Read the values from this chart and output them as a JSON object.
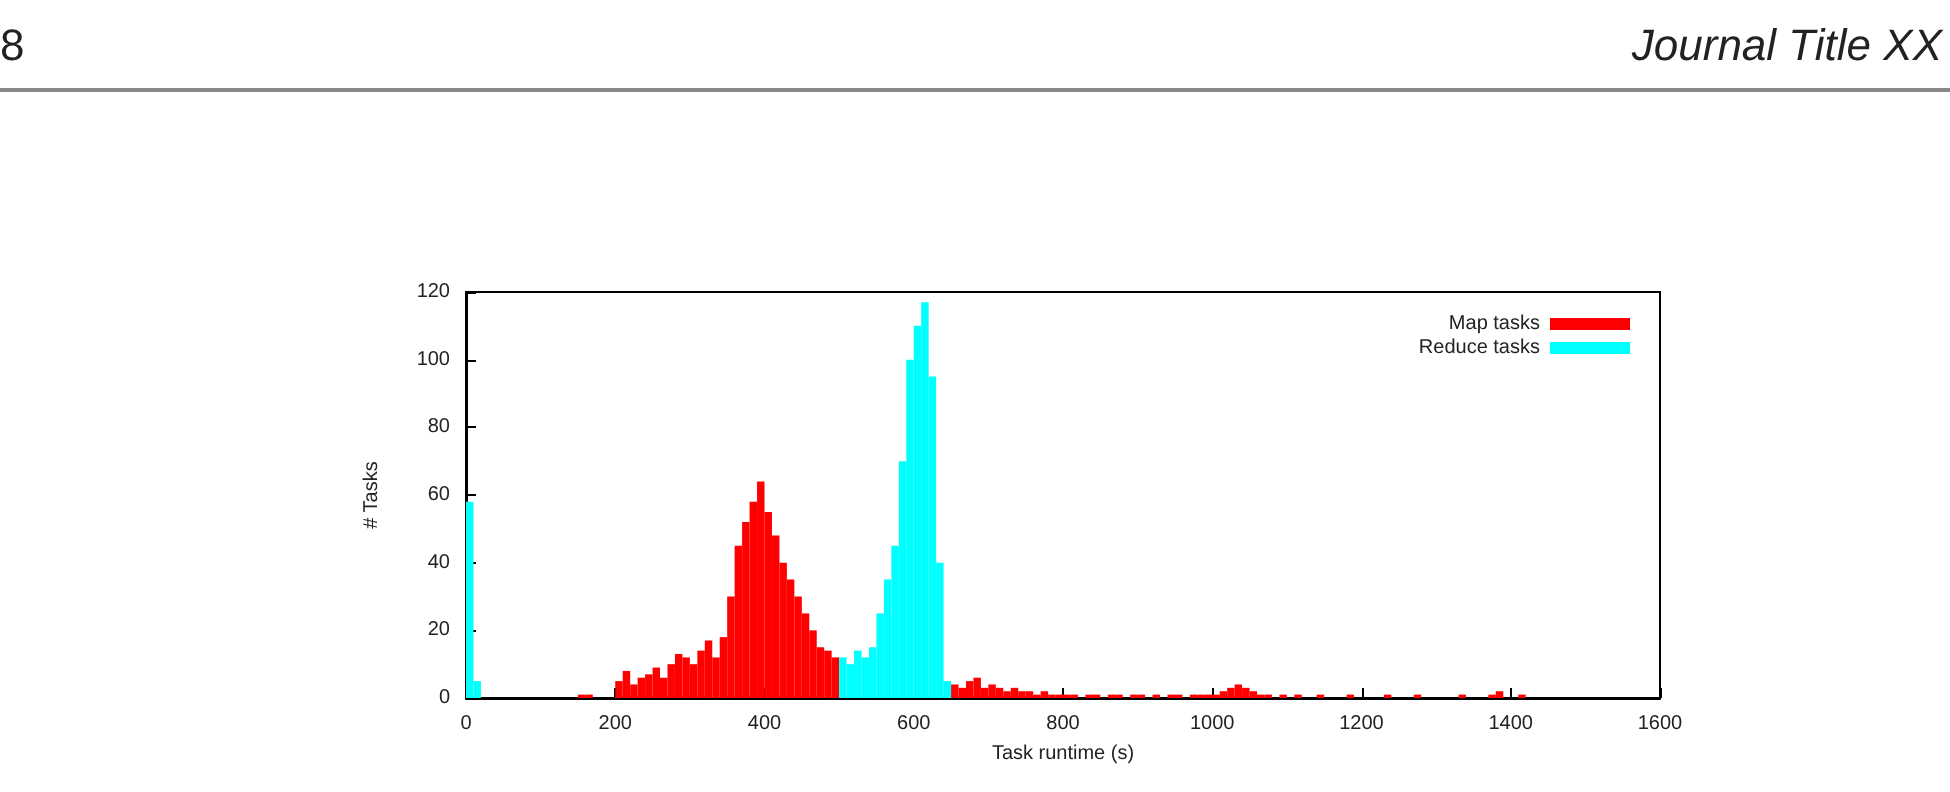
{
  "chart_data": {
    "type": "histogram",
    "xlabel": "Task runtime (s)",
    "ylabel": "# Tasks",
    "annotations": [
      "8",
      "Journal Title XX"
    ],
    "bins": [
      0,
      10,
      20,
      30,
      40,
      50,
      60,
      70,
      80,
      90,
      100,
      110,
      120,
      130,
      140,
      150,
      160,
      170,
      180,
      190,
      200,
      210,
      220,
      230,
      240,
      250,
      260,
      270,
      280,
      290,
      300,
      310,
      320,
      330,
      340,
      350,
      360,
      370,
      380,
      390,
      400,
      410,
      420,
      430,
      440,
      450,
      460,
      470,
      480,
      490,
      500,
      510,
      520,
      530,
      540,
      550,
      560,
      570,
      580,
      590,
      600,
      610,
      620,
      630,
      640,
      650,
      660,
      670,
      680,
      690,
      700,
      710,
      720,
      730,
      740,
      750,
      760,
      770,
      780,
      790,
      800,
      810,
      820,
      830,
      840,
      850,
      860,
      870,
      880,
      890,
      900,
      910,
      920,
      930,
      940,
      950,
      960,
      970,
      980,
      990,
      1000,
      1010,
      1020,
      1030,
      1040,
      1050,
      1060,
      1070,
      1080,
      1090,
      1100,
      1110,
      1120,
      1130,
      1140,
      1150,
      1160,
      1170,
      1180,
      1190,
      1200,
      1210,
      1220,
      1230,
      1240,
      1250,
      1260,
      1270,
      1280,
      1290,
      1300,
      1310,
      1320,
      1330,
      1340,
      1350,
      1360,
      1370,
      1380,
      1390,
      1400,
      1410,
      1420,
      1430,
      1440,
      1450,
      1460,
      1470,
      1480,
      1490,
      1500,
      1510,
      1520,
      1530,
      1540,
      1550,
      1560,
      1570,
      1580,
      1590,
      1600
    ],
    "series": [
      {
        "name": "Map tasks",
        "color": "#ff0000",
        "values": [
          0,
          0,
          0,
          0,
          0,
          0,
          0,
          0,
          0,
          0,
          0,
          0,
          0,
          0,
          0,
          1,
          1,
          null,
          null,
          null,
          5,
          8,
          4,
          6,
          7,
          9,
          6,
          10,
          13,
          12,
          10,
          14,
          17,
          12,
          18,
          30,
          45,
          52,
          58,
          64,
          55,
          48,
          40,
          35,
          30,
          25,
          20,
          15,
          14,
          12,
          null,
          null,
          null,
          null,
          null,
          null,
          null,
          null,
          null,
          null,
          null,
          null,
          null,
          null,
          null,
          4,
          3,
          5,
          6,
          3,
          4,
          3,
          2,
          3,
          2,
          2,
          1,
          2,
          1,
          1,
          1,
          1,
          0,
          1,
          1,
          0,
          1,
          1,
          0,
          1,
          1,
          0,
          1,
          0,
          1,
          1,
          0,
          1,
          1,
          1,
          1,
          2,
          3,
          4,
          3,
          2,
          1,
          1,
          0,
          1,
          0,
          1,
          0,
          0,
          1,
          0,
          0,
          0,
          1,
          0,
          0,
          0,
          0,
          1,
          0,
          0,
          0,
          1,
          0,
          0,
          0,
          0,
          0,
          1,
          0,
          0,
          0,
          1,
          2,
          0,
          0,
          1,
          0,
          0,
          0,
          0,
          0,
          0,
          0,
          0,
          0,
          0,
          0,
          0,
          0,
          0,
          0,
          0,
          0,
          0
        ]
      },
      {
        "name": "Reduce tasks",
        "color": "#00ffff",
        "values": [
          58,
          5,
          0,
          0,
          0,
          0,
          0,
          0,
          0,
          0,
          0,
          0,
          0,
          0,
          0,
          0,
          null,
          null,
          null,
          null,
          null,
          null,
          null,
          null,
          null,
          null,
          null,
          null,
          null,
          null,
          null,
          null,
          null,
          null,
          null,
          null,
          null,
          null,
          null,
          null,
          null,
          null,
          null,
          null,
          null,
          null,
          null,
          null,
          null,
          null,
          12,
          10,
          14,
          12,
          15,
          25,
          35,
          45,
          70,
          100,
          110,
          117,
          95,
          40,
          5,
          null,
          0,
          0,
          0,
          0,
          0,
          0,
          0,
          0,
          0,
          0,
          0,
          0,
          0,
          0,
          0,
          0,
          0,
          0,
          0,
          0,
          0,
          0,
          0,
          0,
          0,
          0,
          0,
          0,
          0,
          0,
          0,
          0,
          0,
          0,
          0,
          0,
          0,
          0,
          0,
          0,
          0,
          0,
          0,
          0,
          0,
          0,
          0,
          0,
          0,
          0,
          0,
          0,
          0,
          0,
          0,
          0,
          0,
          0,
          0,
          0,
          0,
          0,
          0,
          0,
          0,
          0,
          0,
          0,
          0,
          0,
          0,
          0,
          0,
          0,
          0,
          0,
          0,
          0,
          0,
          0,
          0,
          0,
          0,
          0,
          0,
          0,
          0,
          0,
          0,
          0,
          0,
          0,
          0,
          0
        ]
      }
    ],
    "xlim": [
      0,
      1600
    ],
    "xticks": [
      0,
      200,
      400,
      600,
      800,
      1000,
      1200,
      1400,
      1600
    ],
    "ylim": [
      0,
      120
    ],
    "yticks": [
      0,
      20,
      40,
      60,
      80,
      100,
      120
    ],
    "grid": false,
    "legend": "top right"
  }
}
